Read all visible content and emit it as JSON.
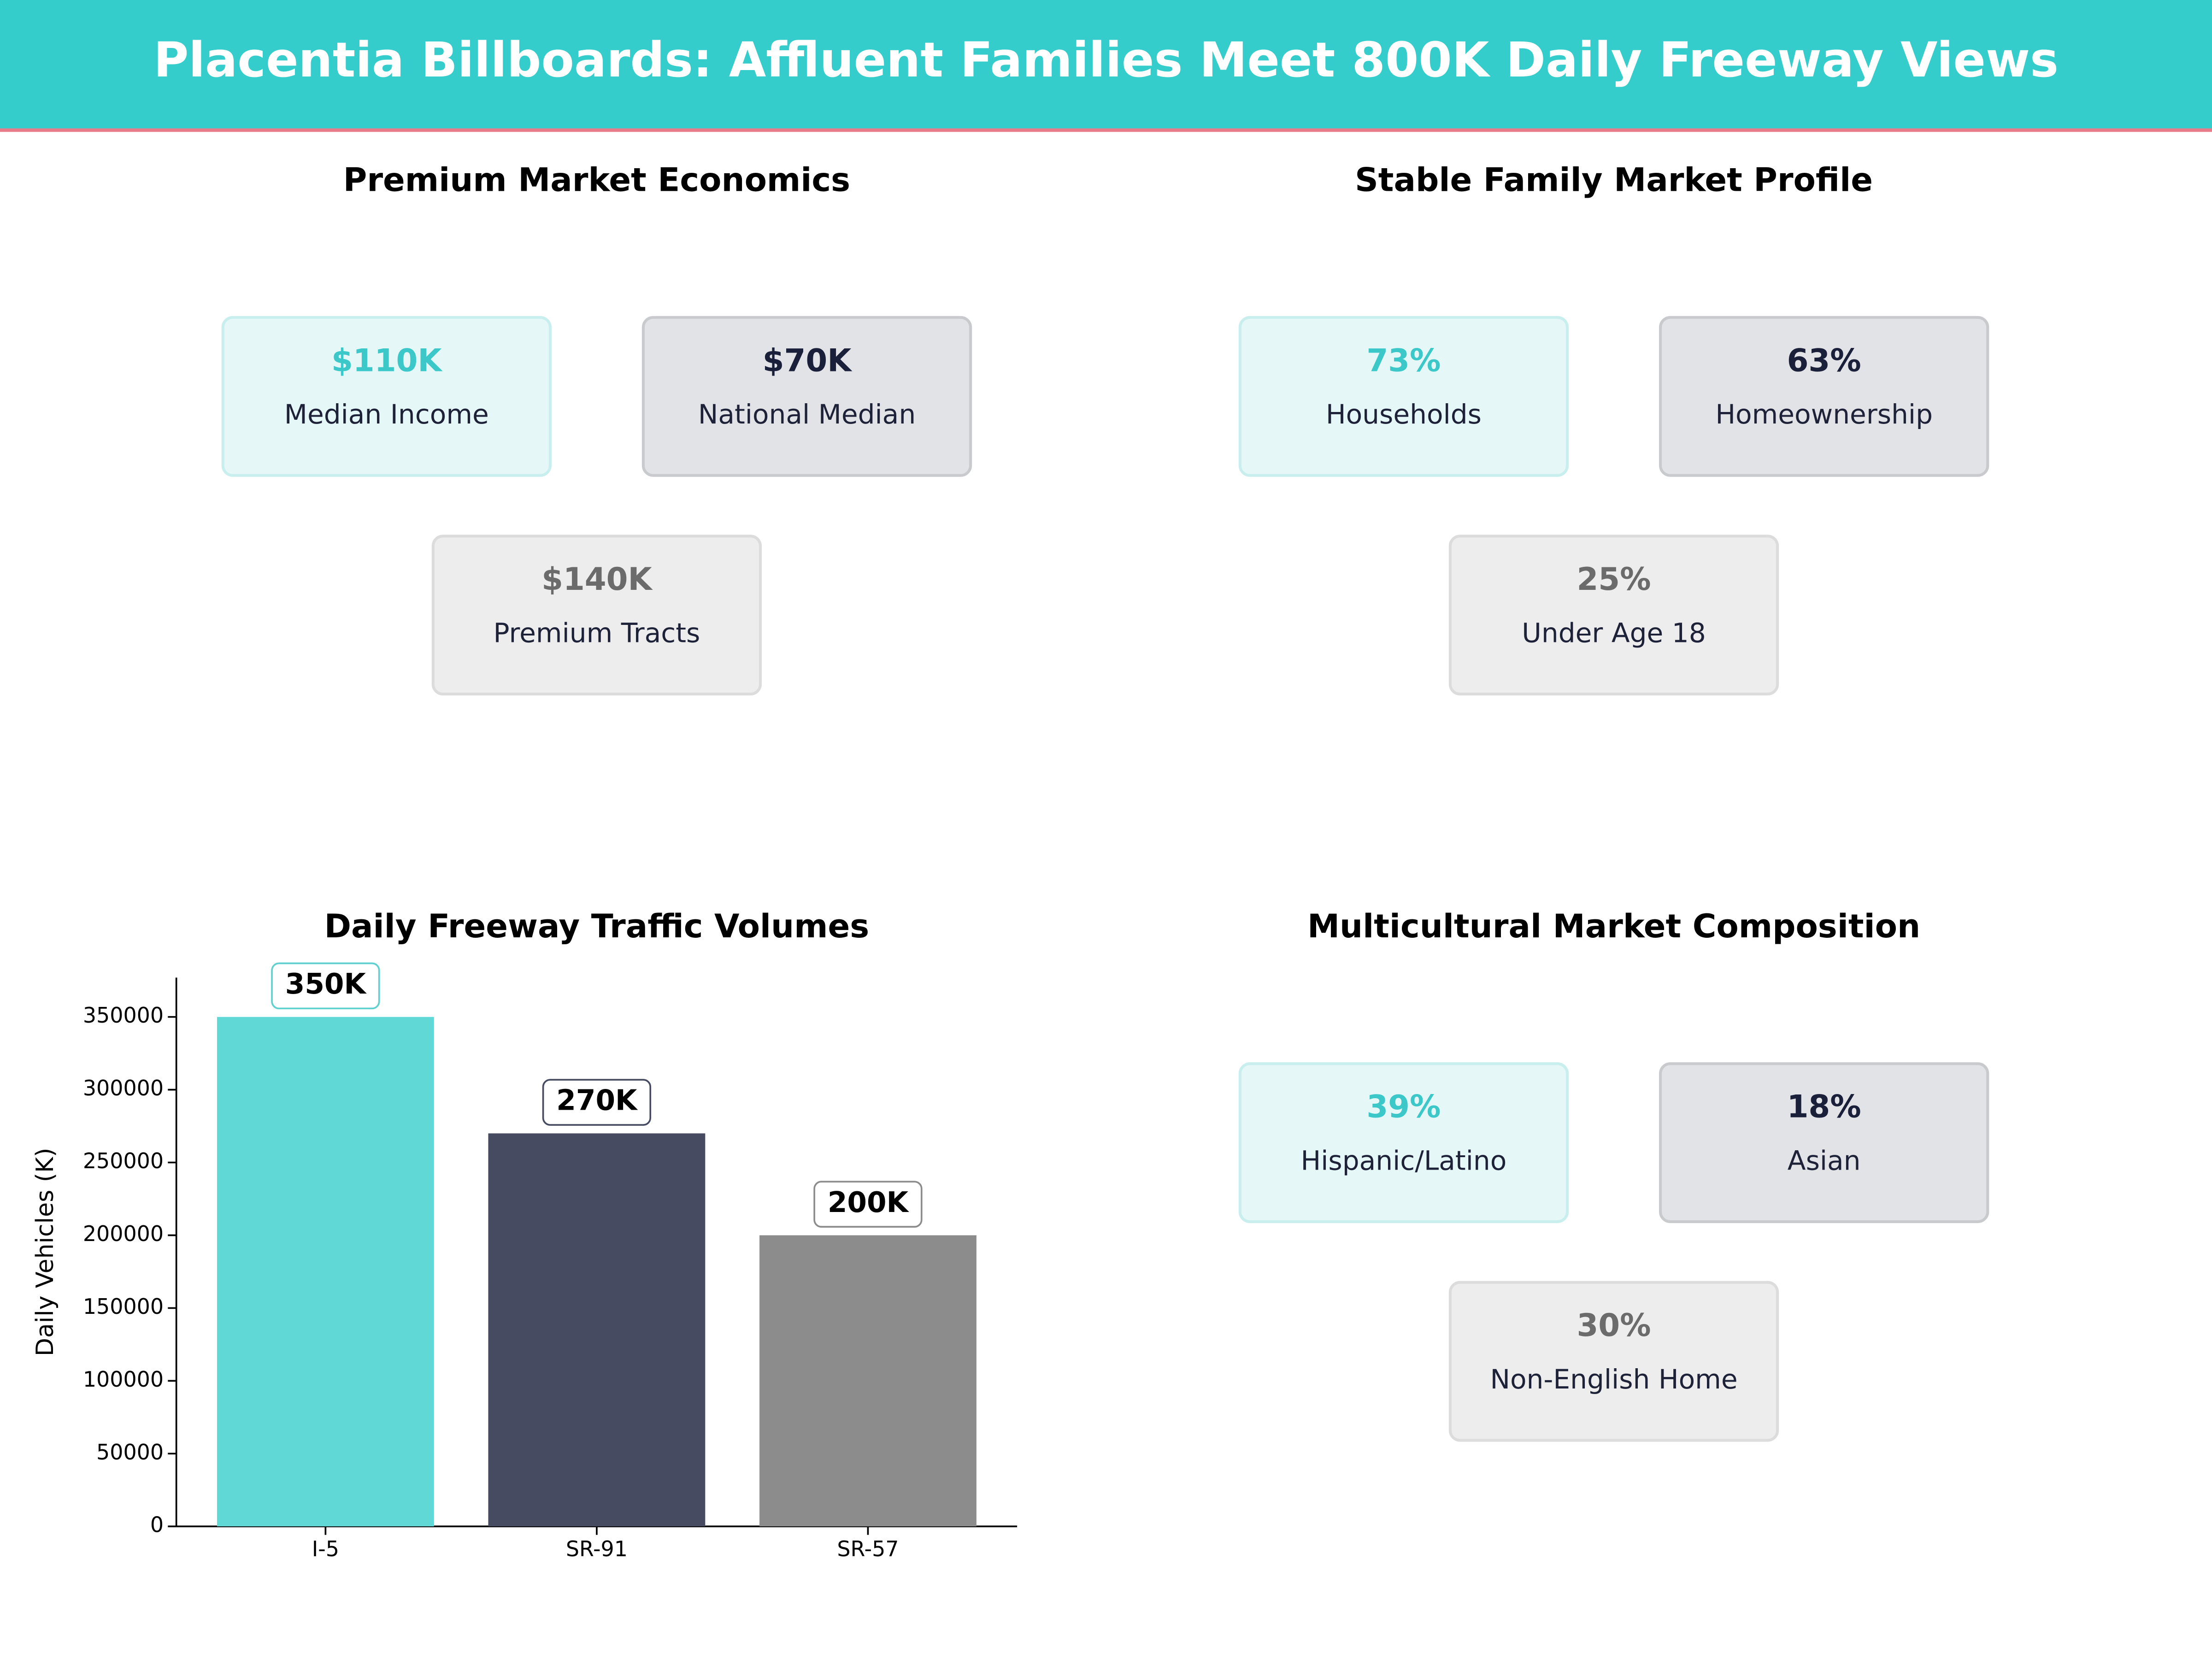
{
  "header": {
    "title": "Placentia Billboards: Affluent Families Meet 800K Daily Freeway Views"
  },
  "panels": [
    {
      "title": "Premium Market Economics",
      "cards": [
        {
          "value": "$110K",
          "label": "Median Income"
        },
        {
          "value": "$70K",
          "label": "National Median"
        },
        {
          "value": "$140K",
          "label": "Premium Tracts"
        }
      ]
    },
    {
      "title": "Stable Family Market Profile",
      "cards": [
        {
          "value": "73%",
          "label": "Households"
        },
        {
          "value": "63%",
          "label": "Homeownership"
        },
        {
          "value": "25%",
          "label": "Under Age 18"
        }
      ]
    },
    {
      "title": "Multicultural Market Composition",
      "cards": [
        {
          "value": "39%",
          "label": "Hispanic/Latino"
        },
        {
          "value": "18%",
          "label": "Asian"
        },
        {
          "value": "30%",
          "label": "Non-English Home"
        }
      ]
    }
  ],
  "chart_data": {
    "type": "bar",
    "title": "Daily Freeway Traffic Volumes",
    "ylabel": "Daily Vehicles (K)",
    "categories": [
      "I-5",
      "SR-91",
      "SR-57"
    ],
    "values": [
      350000,
      270000,
      200000
    ],
    "value_labels": [
      "350K",
      "270K",
      "200K"
    ],
    "colors": [
      "#5fd8d6",
      "#464b62",
      "#8c8c8c"
    ],
    "ylim": [
      0,
      377000
    ],
    "yticks": [
      0,
      50000,
      100000,
      150000,
      200000,
      250000,
      300000,
      350000
    ]
  }
}
